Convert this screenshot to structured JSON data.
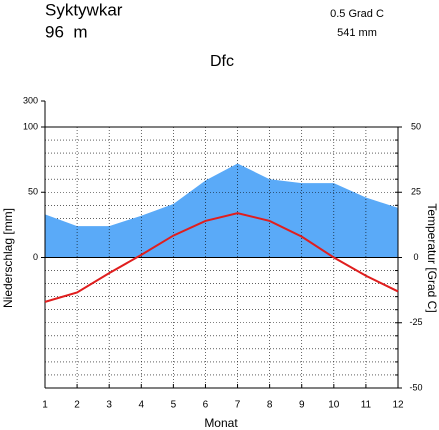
{
  "chart_data": {
    "type": "climate",
    "title": "Syktywkar",
    "subtitle": "96  m",
    "annotations": [
      "0.5 Grad C",
      "541 mm",
      "Dfc"
    ],
    "xlabel": "Monat",
    "ylabel": "Niederschlag [mm]",
    "y2label": "Temperatur [Grad C]",
    "categories": [
      1,
      2,
      3,
      4,
      5,
      6,
      7,
      8,
      9,
      10,
      11,
      12
    ],
    "series": [
      {
        "name": "Niederschlag",
        "color": "#5aaaf8",
        "values": [
          33,
          24,
          24,
          32,
          41,
          59,
          72,
          60,
          57,
          57,
          46,
          38
        ]
      },
      {
        "name": "Temperatur",
        "color": "#e01e1e",
        "axis": "y2",
        "values": [
          -17,
          -13.4,
          -6,
          1,
          8.4,
          14,
          17,
          14,
          8,
          0,
          -7,
          -13
        ]
      }
    ],
    "ylim": [
      -100,
      300
    ],
    "yticks": [
      0,
      50,
      100,
      300
    ],
    "y2lim": [
      -50,
      50
    ],
    "y2ticks": [
      -50,
      -25,
      0,
      25,
      50
    ],
    "grid": true
  }
}
